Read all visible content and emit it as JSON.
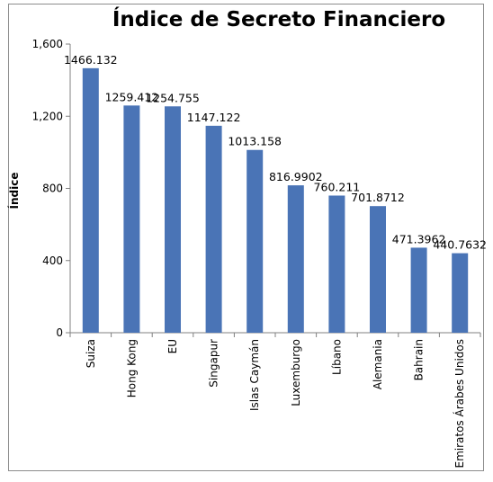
{
  "chart_data": {
    "type": "bar",
    "title": "Índice de Secreto Financiero",
    "xlabel": "",
    "ylabel": "Índice",
    "ylim": [
      0,
      1600
    ],
    "yticks": [
      "0",
      "400",
      "800",
      "1,200",
      "1,600"
    ],
    "ytick_values": [
      0,
      400,
      800,
      1200,
      1600
    ],
    "grid": false,
    "legend": "none",
    "categories": [
      "Suiza",
      "Hong Kong",
      "EU",
      "Singapur",
      "Islas Caymán",
      "Luxemburgo",
      "Líbano",
      "Alemania",
      "Bahrain",
      "Emiratos Árabes Unidos"
    ],
    "values": [
      1466.132,
      1259.412,
      1254.755,
      1147.122,
      1013.158,
      816.9902,
      760.211,
      701.8712,
      471.3962,
      440.7632
    ],
    "data_labels": [
      "1466.132",
      "1259.412",
      "1254.755",
      "1147.122",
      "1013.158",
      "816.9902",
      "760.211",
      "701.8712",
      "471.3962",
      "440.7632"
    ],
    "bar_color": "#4a74b6"
  }
}
